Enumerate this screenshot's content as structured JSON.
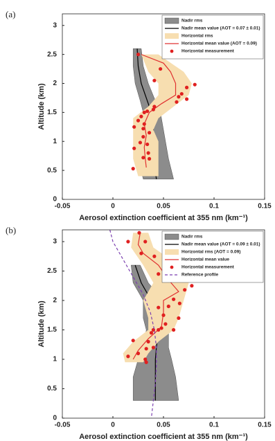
{
  "chart_data": [
    {
      "type": "profile",
      "panel_label": "(a)",
      "xlabel": "Aerosol extinction coefficient at 355 nm (km⁻¹)",
      "ylabel": "Altitude (km)",
      "xlim": [
        -0.05,
        0.15
      ],
      "ylim": [
        0,
        3.2
      ],
      "xticks": [
        -0.05,
        0,
        0.05,
        0.1,
        0.15
      ],
      "yticks": [
        0,
        0.5,
        1,
        1.5,
        2,
        2.5,
        3
      ],
      "legend": "upper right",
      "series": [
        {
          "name": "Nadir rms",
          "kind": "band",
          "color": "#8c8c8c",
          "y": [
            2.6,
            2.3,
            2.0,
            1.7,
            1.5,
            1.2,
            1.0,
            0.7,
            0.35
          ],
          "low": [
            0.02,
            0.02,
            0.022,
            0.027,
            0.03,
            0.028,
            0.025,
            0.025,
            0.03
          ],
          "high": [
            0.028,
            0.03,
            0.035,
            0.042,
            0.047,
            0.05,
            0.052,
            0.055,
            0.06
          ]
        },
        {
          "name": "Nadir mean value (AOT = 0.07 ± 0.01)",
          "kind": "line",
          "color": "#000000",
          "x": [
            0.024,
            0.025,
            0.028,
            0.034,
            0.038,
            0.04,
            0.04,
            0.04,
            0.043
          ],
          "y": [
            2.6,
            2.3,
            2.0,
            1.7,
            1.5,
            1.2,
            1.0,
            0.7,
            0.35
          ]
        },
        {
          "name": "Horizontal rms",
          "kind": "band",
          "color": "#f7deb0",
          "y": [
            2.5,
            2.2,
            2.0,
            1.8,
            1.6,
            1.4,
            1.2,
            1.0,
            0.7,
            0.4
          ],
          "low": [
            0.028,
            0.035,
            0.045,
            0.045,
            0.035,
            0.02,
            0.02,
            0.02,
            0.02,
            0.025
          ],
          "high": [
            0.045,
            0.07,
            0.078,
            0.075,
            0.06,
            0.045,
            0.04,
            0.045,
            0.045,
            0.045
          ]
        },
        {
          "name": "Horizontal mean value (AOT = 0.09)",
          "kind": "line",
          "color": "#e03030",
          "x": [
            0.028,
            0.05,
            0.057,
            0.062,
            0.062,
            0.048,
            0.036,
            0.031,
            0.033,
            0.031,
            0.032,
            0.033
          ],
          "y": [
            2.5,
            2.35,
            2.2,
            2.0,
            1.8,
            1.65,
            1.5,
            1.3,
            1.1,
            0.9,
            0.7,
            0.55
          ]
        },
        {
          "name": "Horizontal measurement",
          "kind": "scatter",
          "color": "#e02020",
          "x": [
            0.025,
            0.047,
            0.041,
            0.081,
            0.073,
            0.068,
            0.065,
            0.073,
            0.063,
            0.041,
            0.04,
            0.034,
            0.031,
            0.028,
            0.025,
            0.031,
            0.03,
            0.021,
            0.036,
            0.03,
            0.027,
            0.034,
            0.021,
            0.035,
            0.03,
            0.036,
            0.02
          ],
          "y": [
            2.5,
            2.25,
            2.05,
            1.98,
            1.93,
            1.82,
            1.77,
            1.73,
            1.68,
            1.6,
            1.55,
            1.52,
            1.5,
            1.43,
            1.36,
            1.3,
            1.22,
            1.25,
            1.15,
            1.08,
            0.98,
            0.95,
            0.88,
            0.8,
            0.72,
            0.7,
            0.53
          ]
        }
      ]
    },
    {
      "type": "profile",
      "panel_label": "(b)",
      "xlabel": "Aerosol extinction coefficient at 355 nm (km⁻¹)",
      "ylabel": "Altitude (km)",
      "xlim": [
        -0.05,
        0.15
      ],
      "ylim": [
        0,
        3.2
      ],
      "xticks": [
        -0.05,
        0,
        0.05,
        0.1,
        0.15
      ],
      "yticks": [
        0,
        0.5,
        1,
        1.5,
        2,
        2.5,
        3
      ],
      "legend": "upper right",
      "series": [
        {
          "name": "Nadir rms",
          "kind": "band",
          "color": "#8c8c8c",
          "y": [
            2.6,
            2.3,
            2.0,
            1.7,
            1.5,
            1.2,
            1.0,
            0.7,
            0.3
          ],
          "low": [
            0.018,
            0.02,
            0.03,
            0.03,
            0.033,
            0.03,
            0.025,
            0.02,
            0.02
          ],
          "high": [
            0.027,
            0.035,
            0.05,
            0.055,
            0.055,
            0.055,
            0.058,
            0.062,
            0.065
          ]
        },
        {
          "name": "Nadir mean value (AOT = 0.09 ± 0.01)",
          "kind": "line",
          "color": "#000000",
          "x": [
            0.022,
            0.028,
            0.038,
            0.045,
            0.045,
            0.043,
            0.042,
            0.042,
            0.042
          ],
          "y": [
            2.6,
            2.3,
            2.0,
            1.7,
            1.5,
            1.2,
            1.0,
            0.7,
            0.3
          ]
        },
        {
          "name": "Horizontal rms (AOT = 0.09)",
          "kind": "band",
          "color": "#f7deb0",
          "y": [
            3.15,
            2.9,
            2.6,
            2.3,
            2.0,
            1.7,
            1.5,
            1.3,
            1.1,
            0.95
          ],
          "low": [
            0.02,
            0.018,
            0.03,
            0.04,
            0.03,
            0.035,
            0.035,
            0.02,
            0.01,
            0.012
          ],
          "high": [
            0.035,
            0.04,
            0.065,
            0.075,
            0.07,
            0.065,
            0.06,
            0.045,
            0.035,
            0.03
          ]
        },
        {
          "name": "Horizontal mean value",
          "kind": "line",
          "color": "#e03030",
          "x": [
            0.027,
            0.025,
            0.03,
            0.045,
            0.055,
            0.065,
            0.05,
            0.05,
            0.048,
            0.035,
            0.025,
            0.02
          ],
          "y": [
            3.15,
            2.95,
            2.8,
            2.6,
            2.35,
            2.15,
            2.0,
            1.8,
            1.55,
            1.35,
            1.15,
            1.0
          ]
        },
        {
          "name": "Horizontal measurement",
          "kind": "scatter",
          "color": "#e02020",
          "x": [
            0.026,
            0.015,
            0.032,
            0.028,
            0.041,
            0.052,
            0.045,
            0.06,
            0.078,
            0.071,
            0.06,
            0.066,
            0.055,
            0.045,
            0.05,
            0.065,
            0.052,
            0.048,
            0.06,
            0.045,
            0.04,
            0.038,
            0.02,
            0.035,
            0.04,
            0.033,
            0.025,
            0.015,
            0.032,
            0.033
          ],
          "y": [
            3.15,
            3.0,
            3.0,
            2.8,
            2.75,
            2.52,
            2.45,
            2.35,
            2.25,
            2.18,
            2.02,
            1.95,
            1.9,
            1.88,
            1.75,
            1.7,
            1.6,
            1.53,
            1.5,
            1.5,
            1.5,
            1.45,
            1.32,
            1.3,
            1.2,
            1.18,
            1.1,
            1.05,
            1.0,
            0.95
          ]
        },
        {
          "name": "Reference profile",
          "kind": "dashed",
          "color": "#7b3fb0",
          "x": [
            -0.003,
            0.0,
            0.01,
            0.02,
            0.03,
            0.037,
            0.041,
            0.043,
            0.043,
            0.042,
            0.04,
            0.038
          ],
          "y": [
            3.2,
            3.0,
            2.7,
            2.4,
            2.1,
            1.8,
            1.5,
            1.2,
            0.9,
            0.6,
            0.3,
            0.0
          ]
        }
      ]
    }
  ]
}
